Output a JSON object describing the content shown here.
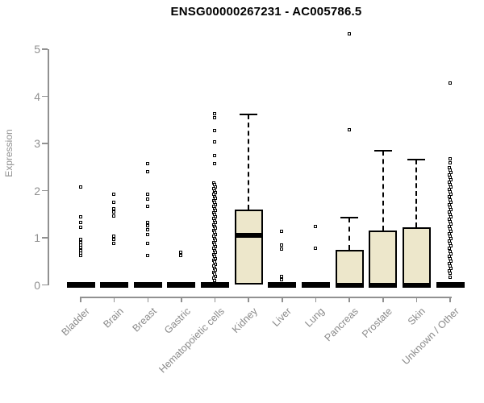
{
  "title": "ENSG00000267231 - AC005786.5",
  "colors": {
    "box_fill": "#EDE7CB",
    "box_border": "#000000",
    "axis": "#919191",
    "label_gray": "#909090",
    "title_color": "#000000",
    "background": "#ffffff"
  },
  "chart_data": {
    "type": "boxplot",
    "title": "ENSG00000267231 - AC005786.5",
    "xlabel": "",
    "ylabel": "Expression",
    "ylim": [
      0,
      5
    ],
    "yticks": [
      0,
      1,
      2,
      3,
      4,
      5
    ],
    "grid": false,
    "legend": "none",
    "categories": [
      "Bladder",
      "Brain",
      "Breast",
      "Gastric",
      "Hematopoietic cells",
      "Kidney",
      "Liver",
      "Lung",
      "Pancreas",
      "Prostate",
      "Skin",
      "Unknown / Other"
    ],
    "series": [
      {
        "name": "Bladder",
        "q1": 0,
        "median": 0,
        "q3": 0,
        "whisker_low": 0,
        "whisker_high": 0,
        "outliers": [
          2.06,
          1.43,
          1.31,
          1.21,
          0.95,
          0.89,
          0.83,
          0.78,
          0.72,
          0.66,
          0.61
        ]
      },
      {
        "name": "Brain",
        "q1": 0,
        "median": 0,
        "q3": 0,
        "whisker_low": 0,
        "whisker_high": 0,
        "outliers": [
          1.91,
          1.74,
          1.6,
          1.53,
          1.46,
          1.03,
          0.96,
          0.87
        ]
      },
      {
        "name": "Breast",
        "q1": 0,
        "median": 0,
        "q3": 0,
        "whisker_low": 0,
        "whisker_high": 0,
        "outliers": [
          2.56,
          2.4,
          1.91,
          1.81,
          1.65,
          1.31,
          1.24,
          1.17,
          1.06,
          0.87,
          0.61
        ]
      },
      {
        "name": "Gastric",
        "q1": 0,
        "median": 0,
        "q3": 0,
        "whisker_low": 0,
        "whisker_high": 0,
        "outliers": [
          0.69,
          0.61
        ]
      },
      {
        "name": "Hematopoietic cells",
        "q1": 0,
        "median": 0,
        "q3": 0,
        "whisker_low": 0,
        "whisker_high": 0,
        "outliers": [
          3.63,
          3.53,
          3.26,
          3.02,
          2.74,
          2.56
        ],
        "outlier_strip": {
          "top": 2.16,
          "bottom": 0.09,
          "count": 50
        }
      },
      {
        "name": "Kidney",
        "q1": 0,
        "median": 1.05,
        "q3": 1.6,
        "whisker_low": 0,
        "whisker_high": 3.62,
        "outliers": []
      },
      {
        "name": "Liver",
        "q1": 0,
        "median": 0,
        "q3": 0,
        "whisker_low": 0,
        "whisker_high": 0,
        "outliers": [
          1.12,
          0.83,
          0.76,
          0.17,
          0.1
        ]
      },
      {
        "name": "Lung",
        "q1": 0,
        "median": 0,
        "q3": 0,
        "whisker_low": 0,
        "whisker_high": 0,
        "outliers": [
          1.23,
          0.77
        ]
      },
      {
        "name": "Pancreas",
        "q1": 0,
        "median": 0,
        "q3": 0.74,
        "whisker_low": 0,
        "whisker_high": 1.43,
        "outliers": [
          5.32,
          3.29
        ]
      },
      {
        "name": "Prostate",
        "q1": 0,
        "median": 0,
        "q3": 1.15,
        "whisker_low": 0,
        "whisker_high": 2.85,
        "outliers": []
      },
      {
        "name": "Skin",
        "q1": 0,
        "median": 0,
        "q3": 1.23,
        "whisker_low": 0,
        "whisker_high": 2.66,
        "outliers": []
      },
      {
        "name": "Unknown / Other",
        "q1": 0,
        "median": 0,
        "q3": 0,
        "whisker_low": 0,
        "whisker_high": 0,
        "outliers": [
          4.28,
          2.67,
          2.58,
          0.15
        ],
        "outlier_strip": {
          "top": 2.48,
          "bottom": 0.24,
          "count": 44
        }
      }
    ]
  }
}
